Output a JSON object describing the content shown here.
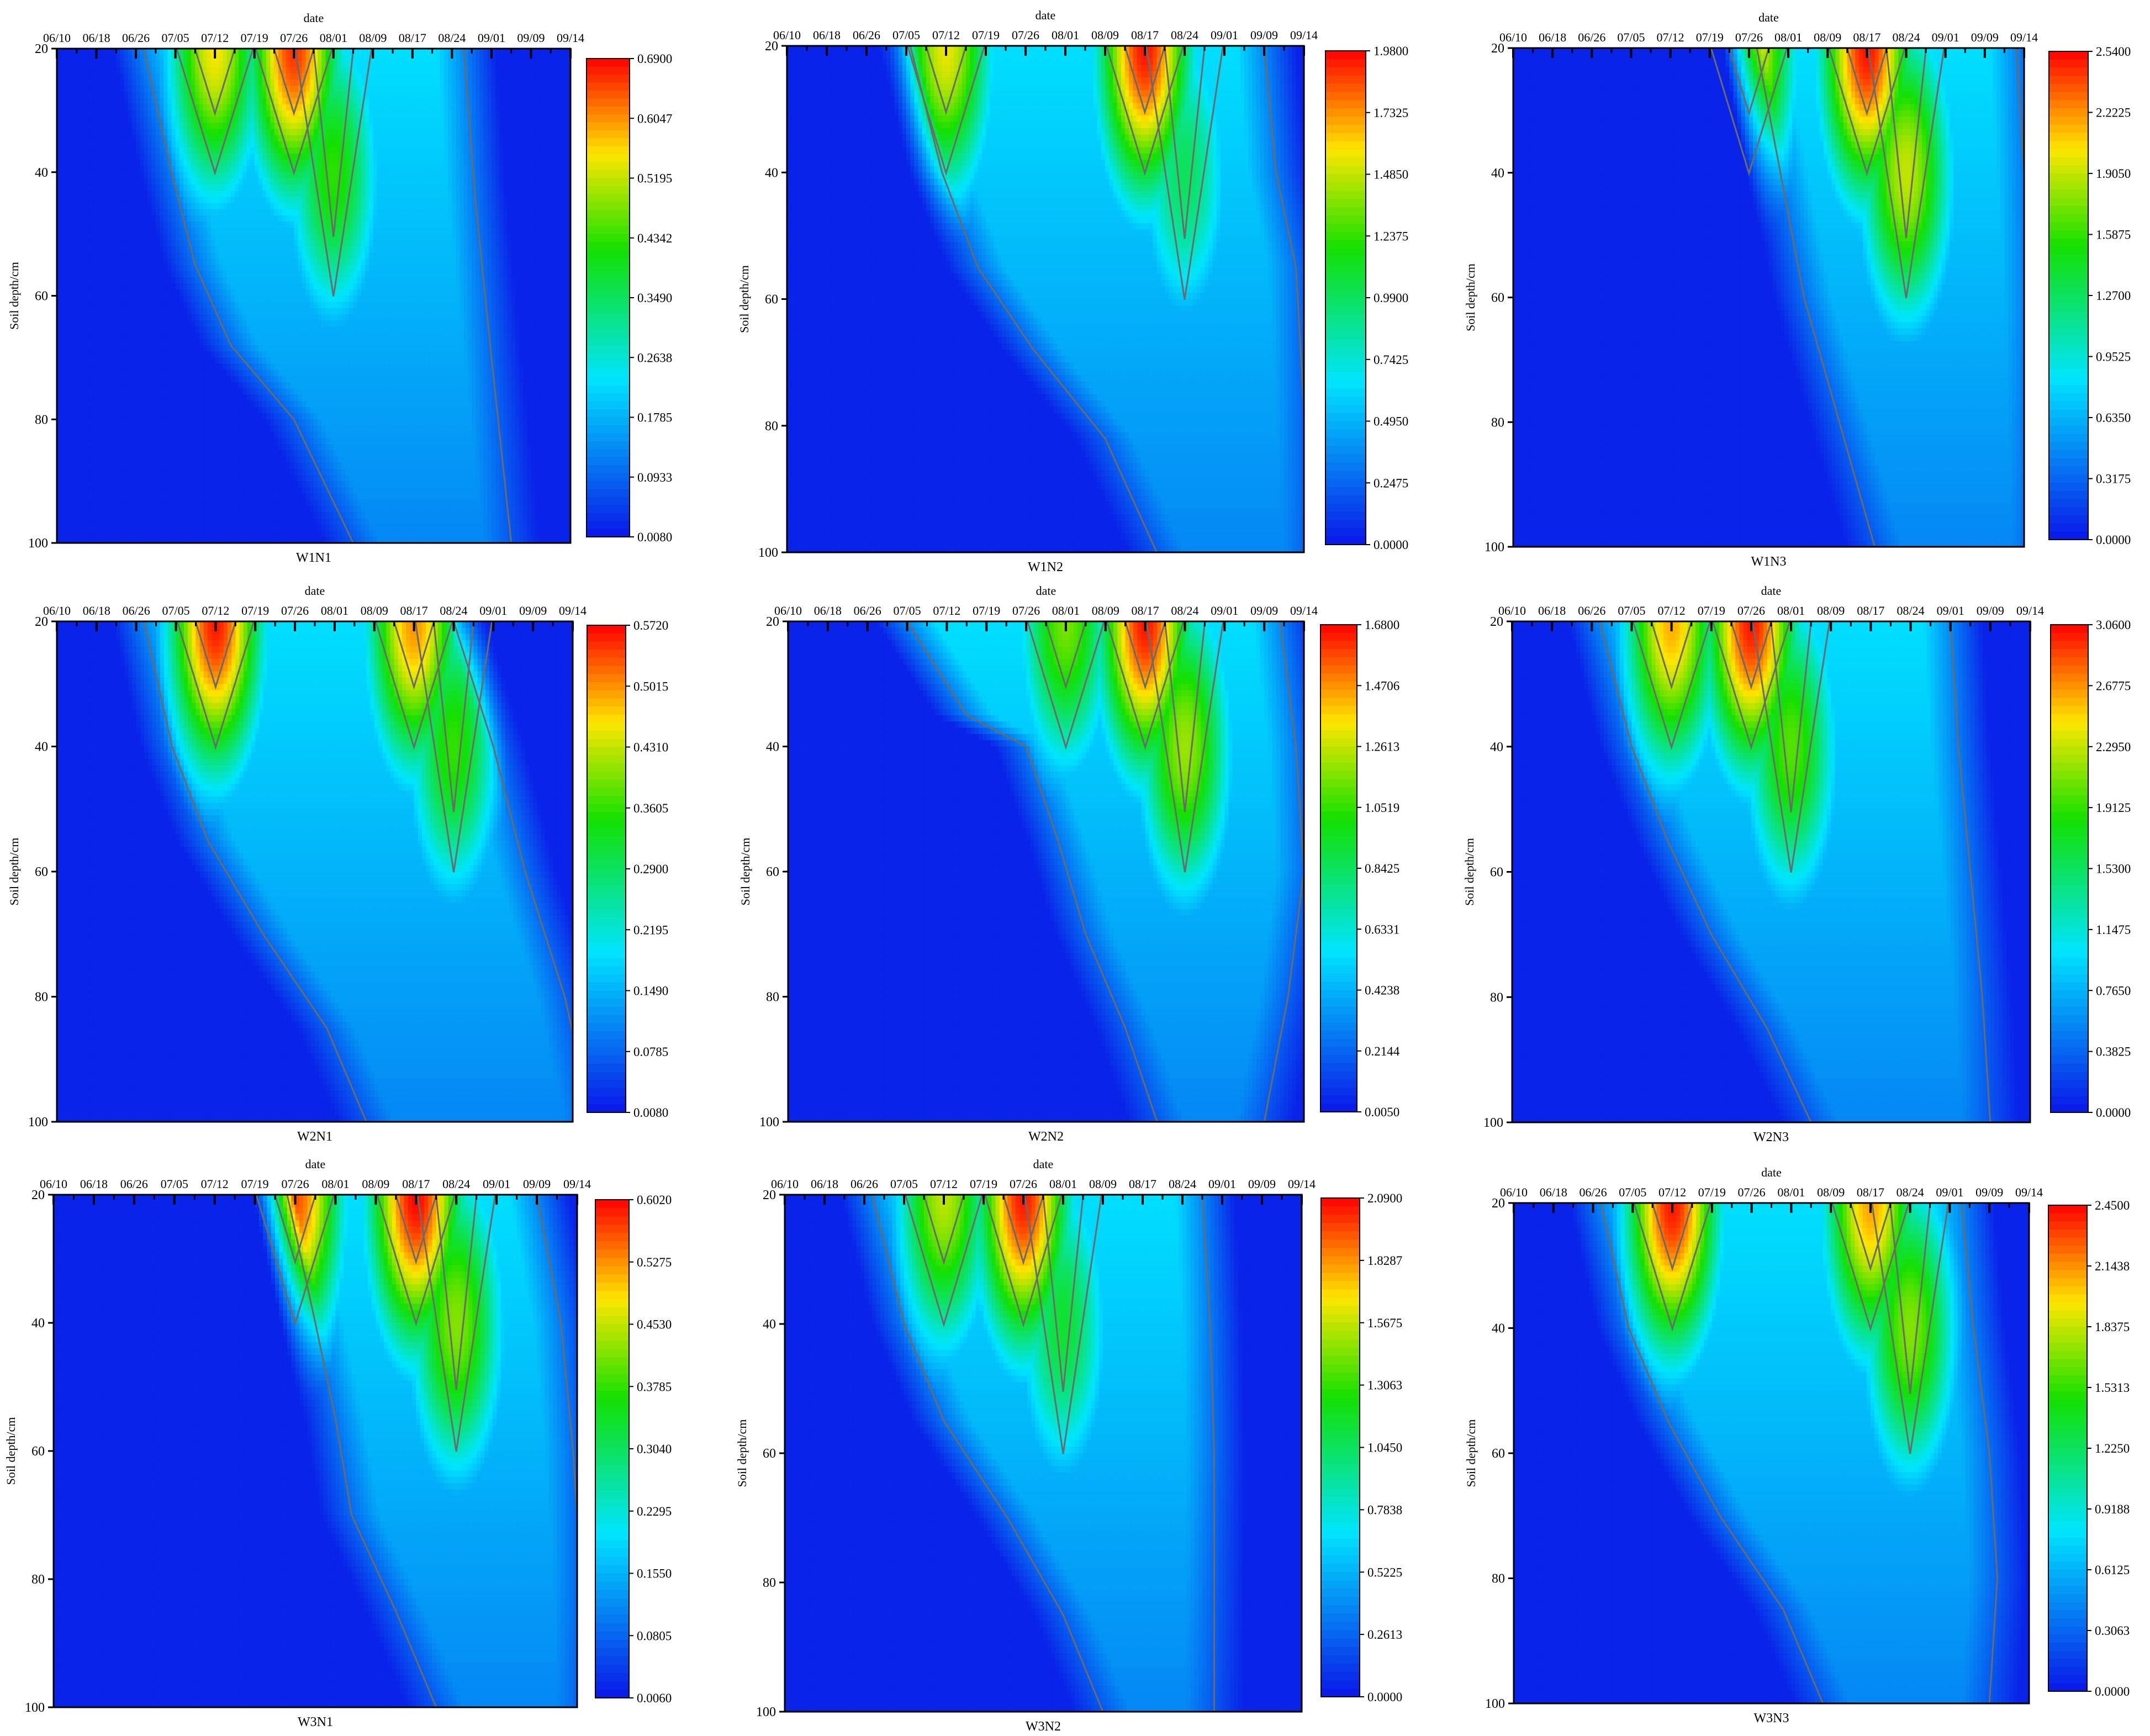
{
  "common": {
    "date_label": "date",
    "dates": [
      "06/10",
      "06/18",
      "06/26",
      "07/05",
      "07/12",
      "07/19",
      "07/26",
      "08/01",
      "08/09",
      "08/17",
      "08/24",
      "09/01",
      "09/09",
      "09/14"
    ],
    "depth_label": "Soil depth/cm",
    "depth_ticks": [
      "20",
      "40",
      "60",
      "80",
      "100"
    ],
    "colors": {
      "low": "#0a17e8",
      "cyan": "#00e5ff",
      "green": "#14e000",
      "yellow": "#ffe600",
      "high": "#ff0000"
    }
  },
  "chart_data": [
    {
      "type": "heatmap",
      "title": "W1N1",
      "ylabel": "Soil depth/cm",
      "xlabel": "date",
      "ylim": [
        20,
        100
      ],
      "colorbar": [
        "0.6900",
        "0.6047",
        "0.5195",
        "0.4342",
        "0.3490",
        "0.2638",
        "0.1785",
        "0.0933",
        "0.0080"
      ],
      "vmin": 0.008,
      "vmax": 0.69,
      "peaks": [
        {
          "date": "07/12",
          "depth": 20,
          "value": 0.55
        },
        {
          "date": "07/26",
          "depth": 20,
          "value": 0.66
        },
        {
          "date": "08/01",
          "depth": 40,
          "value": 0.43
        }
      ]
    },
    {
      "type": "heatmap",
      "title": "W1N2",
      "ylabel": "Soil depth/cm",
      "xlabel": "date",
      "ylim": [
        20,
        100
      ],
      "colorbar": [
        "1.9800",
        "1.7325",
        "1.4850",
        "1.2375",
        "0.9900",
        "0.7425",
        "0.4950",
        "0.2475",
        "0.0000"
      ],
      "vmin": 0,
      "vmax": 1.98,
      "peaks": [
        {
          "date": "07/12",
          "depth": 20,
          "value": 1.55
        },
        {
          "date": "08/17",
          "depth": 20,
          "value": 1.95
        },
        {
          "date": "08/24",
          "depth": 40,
          "value": 1.0
        }
      ]
    },
    {
      "type": "heatmap",
      "title": "W1N3",
      "ylabel": "Soil depth/cm",
      "xlabel": "date",
      "ylim": [
        20,
        100
      ],
      "colorbar": [
        "2.5400",
        "2.2225",
        "1.9050",
        "1.5875",
        "1.2700",
        "0.9525",
        "0.6350",
        "0.3175",
        "0.0000"
      ],
      "vmin": 0,
      "vmax": 2.54,
      "peaks": [
        {
          "date": "07/26",
          "depth": 20,
          "value": 2.1
        },
        {
          "date": "08/17",
          "depth": 20,
          "value": 2.5
        },
        {
          "date": "08/24",
          "depth": 40,
          "value": 1.9
        }
      ]
    },
    {
      "type": "heatmap",
      "title": "W2N1",
      "ylabel": "Soil depth/cm",
      "xlabel": "date",
      "ylim": [
        20,
        100
      ],
      "colorbar": [
        "0.5720",
        "0.5015",
        "0.4310",
        "0.3605",
        "0.2900",
        "0.2195",
        "0.1490",
        "0.0785",
        "0.0080"
      ],
      "vmin": 0.008,
      "vmax": 0.572,
      "peaks": [
        {
          "date": "07/12",
          "depth": 20,
          "value": 0.56
        },
        {
          "date": "08/17",
          "depth": 20,
          "value": 0.5
        },
        {
          "date": "08/24",
          "depth": 40,
          "value": 0.36
        }
      ]
    },
    {
      "type": "heatmap",
      "title": "W2N2",
      "ylabel": "Soil depth/cm",
      "xlabel": "date",
      "ylim": [
        20,
        100
      ],
      "colorbar": [
        "1.6800",
        "1.4706",
        "1.2613",
        "1.0519",
        "0.8425",
        "0.6331",
        "0.4238",
        "0.2144",
        "0.0050"
      ],
      "vmin": 0.005,
      "vmax": 1.68,
      "peaks": [
        {
          "date": "08/01",
          "depth": 20,
          "value": 1.15
        },
        {
          "date": "08/17",
          "depth": 20,
          "value": 1.65
        },
        {
          "date": "08/24",
          "depth": 40,
          "value": 1.2
        }
      ]
    },
    {
      "type": "heatmap",
      "title": "W2N3",
      "ylabel": "Soil depth/cm",
      "xlabel": "date",
      "ylim": [
        20,
        100
      ],
      "colorbar": [
        "3.0600",
        "2.6775",
        "2.2950",
        "1.9125",
        "1.5300",
        "1.1475",
        "0.7650",
        "0.3825",
        "0.0000"
      ],
      "vmin": 0,
      "vmax": 3.06,
      "peaks": [
        {
          "date": "07/12",
          "depth": 20,
          "value": 2.6
        },
        {
          "date": "07/26",
          "depth": 20,
          "value": 3.0
        },
        {
          "date": "08/01",
          "depth": 40,
          "value": 2.0
        }
      ]
    },
    {
      "type": "heatmap",
      "title": "W3N1",
      "ylabel": "Soil depth/cm",
      "xlabel": "date",
      "ylim": [
        20,
        100
      ],
      "colorbar": [
        "0.6020",
        "0.5275",
        "0.4530",
        "0.3785",
        "0.3040",
        "0.2295",
        "0.1550",
        "0.0805",
        "0.0060"
      ],
      "vmin": 0.006,
      "vmax": 0.602,
      "peaks": [
        {
          "date": "07/26",
          "depth": 20,
          "value": 0.56
        },
        {
          "date": "08/17",
          "depth": 20,
          "value": 0.6
        },
        {
          "date": "08/24",
          "depth": 40,
          "value": 0.42
        }
      ]
    },
    {
      "type": "heatmap",
      "title": "W3N2",
      "ylabel": "Soil depth/cm",
      "xlabel": "date",
      "ylim": [
        20,
        100
      ],
      "colorbar": [
        "2.0900",
        "1.8287",
        "1.5675",
        "1.3063",
        "1.0450",
        "0.7838",
        "0.5225",
        "0.2613",
        "0.0000"
      ],
      "vmin": 0,
      "vmax": 2.09,
      "peaks": [
        {
          "date": "07/12",
          "depth": 20,
          "value": 1.55
        },
        {
          "date": "07/26",
          "depth": 20,
          "value": 2.05
        },
        {
          "date": "08/01",
          "depth": 40,
          "value": 1.15
        }
      ]
    },
    {
      "type": "heatmap",
      "title": "W3N3",
      "ylabel": "Soil depth/cm",
      "xlabel": "date",
      "ylim": [
        20,
        100
      ],
      "colorbar": [
        "2.4500",
        "2.1438",
        "1.8375",
        "1.5313",
        "1.2250",
        "0.9188",
        "0.6125",
        "0.3063",
        "0.0000"
      ],
      "vmin": 0,
      "vmax": 2.45,
      "peaks": [
        {
          "date": "07/12",
          "depth": 20,
          "value": 2.4
        },
        {
          "date": "08/17",
          "depth": 20,
          "value": 2.1
        },
        {
          "date": "08/24",
          "depth": 40,
          "value": 1.7
        }
      ]
    }
  ]
}
